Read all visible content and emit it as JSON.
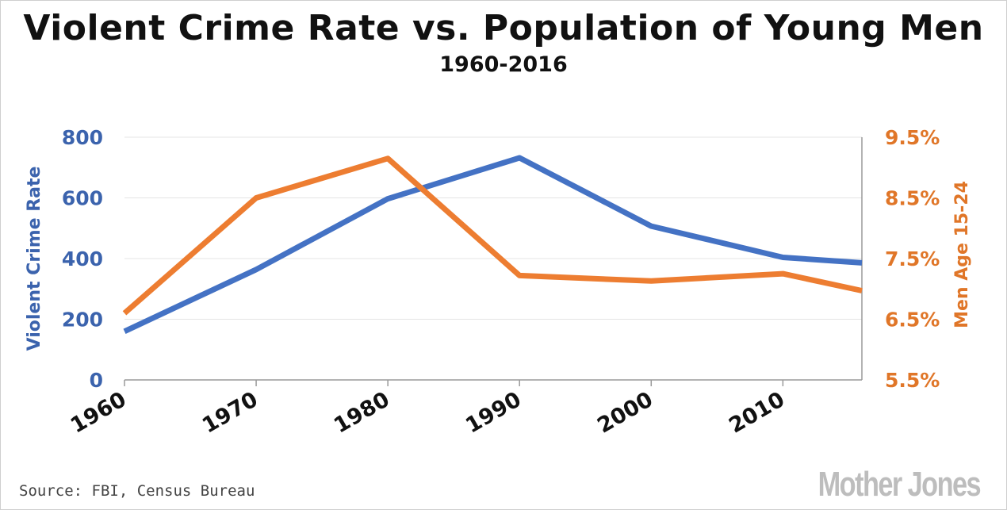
{
  "chart_data": {
    "type": "line",
    "title": "Violent Crime Rate vs. Population of Young Men",
    "subtitle": "1960-2016",
    "x": [
      1960,
      1970,
      1980,
      1990,
      2000,
      2010,
      2016
    ],
    "xticks": [
      "1960",
      "1970",
      "1980",
      "1990",
      "2000",
      "2010"
    ],
    "xlim": [
      1960,
      2016
    ],
    "y_left": {
      "label": "Violent Crime Rate",
      "ylim": [
        0,
        800
      ],
      "ticks": [
        "0",
        "200",
        "400",
        "600",
        "800"
      ],
      "tick_values": [
        0,
        200,
        400,
        600,
        800
      ]
    },
    "y_right": {
      "label": "Men Age 15-24",
      "ylim": [
        5.5,
        9.5
      ],
      "ticks": [
        "5.5%",
        "6.5%",
        "7.5%",
        "8.5%",
        "9.5%"
      ],
      "tick_values": [
        5.5,
        6.5,
        7.5,
        8.5,
        9.5
      ]
    },
    "series": [
      {
        "axis": "left",
        "color": "#4472c4",
        "values": [
          160,
          364,
          597,
          732,
          507,
          404,
          386
        ]
      },
      {
        "axis": "right",
        "color": "#ed7d31",
        "values": [
          6.6,
          8.5,
          9.15,
          7.22,
          7.13,
          7.25,
          6.97
        ]
      }
    ],
    "grid": true,
    "source": "Source: FBI, Census Bureau",
    "logo": "Mother Jones"
  }
}
